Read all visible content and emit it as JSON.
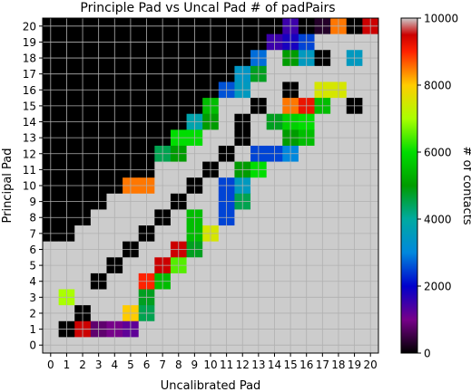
{
  "chart_data": {
    "type": "heatmap",
    "title": "Principle Pad vs Uncal Pad # of padPairs",
    "xlabel": "Uncalibrated Pad",
    "ylabel": "Principal Pad",
    "colorbar_label": "# of contacts",
    "colormap": "nipy_spectral",
    "vmin": 0,
    "vmax": 10000,
    "colorbar_ticks": [
      "0",
      "2000",
      "4000",
      "6000",
      "8000",
      "10000"
    ],
    "colorbar_tick_values": [
      0,
      2000,
      4000,
      6000,
      8000,
      10000
    ],
    "x_ticks": [
      "0",
      "1",
      "2",
      "3",
      "4",
      "5",
      "6",
      "7",
      "8",
      "9",
      "10",
      "11",
      "12",
      "13",
      "14",
      "15",
      "16",
      "17",
      "18",
      "19",
      "20"
    ],
    "y_ticks": [
      "0",
      "1",
      "2",
      "3",
      "4",
      "5",
      "6",
      "7",
      "8",
      "9",
      "10",
      "11",
      "12",
      "13",
      "14",
      "15",
      "16",
      "17",
      "18",
      "19",
      "20"
    ],
    "grid": true,
    "z_rows_top_to_bottom": [
      [
        0,
        0,
        0,
        0,
        0,
        0,
        0,
        0,
        0,
        0,
        0,
        0,
        0,
        0,
        0,
        1500,
        0,
        300,
        8500,
        0,
        9500
      ],
      [
        0,
        0,
        0,
        0,
        0,
        0,
        0,
        0,
        0,
        0,
        0,
        0,
        0,
        0,
        1500,
        1800,
        2500,
        10000,
        10000,
        10000,
        10000
      ],
      [
        0,
        0,
        0,
        0,
        0,
        0,
        0,
        0,
        0,
        0,
        0,
        0,
        0,
        2800,
        10000,
        5000,
        3500,
        0,
        10000,
        3500,
        10000
      ],
      [
        0,
        0,
        0,
        0,
        0,
        0,
        0,
        0,
        0,
        0,
        0,
        0,
        3400,
        4800,
        10000,
        10000,
        10000,
        10000,
        10000,
        10000,
        10000
      ],
      [
        0,
        0,
        0,
        0,
        0,
        0,
        0,
        0,
        0,
        0,
        0,
        2600,
        3500,
        10000,
        10000,
        0,
        10000,
        7500,
        7500,
        10000,
        10000
      ],
      [
        0,
        0,
        0,
        0,
        0,
        0,
        0,
        0,
        0,
        0,
        5500,
        10000,
        10000,
        0,
        10000,
        8500,
        9200,
        5500,
        10000,
        0,
        10000
      ],
      [
        0,
        0,
        0,
        0,
        0,
        0,
        0,
        0,
        0,
        3800,
        5000,
        10000,
        0,
        10000,
        4800,
        5800,
        6000,
        10000,
        10000,
        10000,
        10000
      ],
      [
        0,
        0,
        0,
        0,
        0,
        0,
        0,
        0,
        6000,
        6000,
        10000,
        10000,
        0,
        10000,
        10000,
        5000,
        5500,
        10000,
        10000,
        10000,
        10000
      ],
      [
        0,
        0,
        0,
        0,
        0,
        0,
        0,
        4500,
        5000,
        10000,
        10000,
        0,
        10000,
        2500,
        2500,
        3000,
        10000,
        10000,
        10000,
        10000,
        10000
      ],
      [
        0,
        0,
        0,
        0,
        0,
        0,
        0,
        10000,
        10000,
        10000,
        0,
        10000,
        5000,
        6000,
        10000,
        10000,
        10000,
        10000,
        10000,
        10000,
        10000
      ],
      [
        0,
        0,
        0,
        0,
        0,
        8500,
        8500,
        10000,
        10000,
        0,
        10000,
        2500,
        3500,
        10000,
        10000,
        10000,
        10000,
        10000,
        10000,
        10000,
        10000
      ],
      [
        0,
        0,
        0,
        0,
        10000,
        10000,
        10000,
        10000,
        0,
        10000,
        10000,
        2500,
        4500,
        10000,
        10000,
        10000,
        10000,
        10000,
        10000,
        10000,
        10000
      ],
      [
        0,
        0,
        0,
        10000,
        10000,
        10000,
        10000,
        0,
        10000,
        5500,
        10000,
        2500,
        10000,
        10000,
        10000,
        10000,
        10000,
        10000,
        10000,
        10000,
        10000
      ],
      [
        0,
        0,
        10000,
        10000,
        10000,
        10000,
        0,
        10000,
        10000,
        5500,
        7500,
        10000,
        10000,
        10000,
        10000,
        10000,
        10000,
        10000,
        10000,
        10000,
        10000
      ],
      [
        10000,
        10000,
        10000,
        10000,
        10000,
        0,
        10000,
        10000,
        9500,
        4800,
        10000,
        10000,
        10000,
        10000,
        10000,
        10000,
        10000,
        10000,
        10000,
        10000,
        10000
      ],
      [
        10000,
        10000,
        10000,
        10000,
        0,
        10000,
        10000,
        9500,
        6500,
        10000,
        10000,
        10000,
        10000,
        10000,
        10000,
        10000,
        10000,
        10000,
        10000,
        10000,
        10000
      ],
      [
        10000,
        10000,
        10000,
        0,
        10000,
        10000,
        9000,
        5500,
        10000,
        10000,
        10000,
        10000,
        10000,
        10000,
        10000,
        10000,
        10000,
        10000,
        10000,
        10000,
        10000
      ],
      [
        10000,
        7000,
        10000,
        10000,
        10000,
        10000,
        4800,
        10000,
        10000,
        10000,
        10000,
        10000,
        10000,
        10000,
        10000,
        10000,
        10000,
        10000,
        10000,
        10000,
        10000
      ],
      [
        10000,
        10000,
        0,
        10000,
        10000,
        8000,
        4500,
        10000,
        10000,
        10000,
        10000,
        10000,
        10000,
        10000,
        10000,
        10000,
        10000,
        10000,
        10000,
        10000,
        10000
      ],
      [
        10000,
        0,
        9500,
        800,
        1000,
        1200,
        10000,
        10000,
        10000,
        10000,
        10000,
        10000,
        10000,
        10000,
        10000,
        10000,
        10000,
        10000,
        10000,
        10000,
        10000
      ],
      [
        10000,
        10000,
        10000,
        10000,
        10000,
        10000,
        10000,
        10000,
        10000,
        10000,
        10000,
        10000,
        10000,
        10000,
        10000,
        10000,
        10000,
        10000,
        10000,
        10000,
        10000
      ]
    ]
  }
}
